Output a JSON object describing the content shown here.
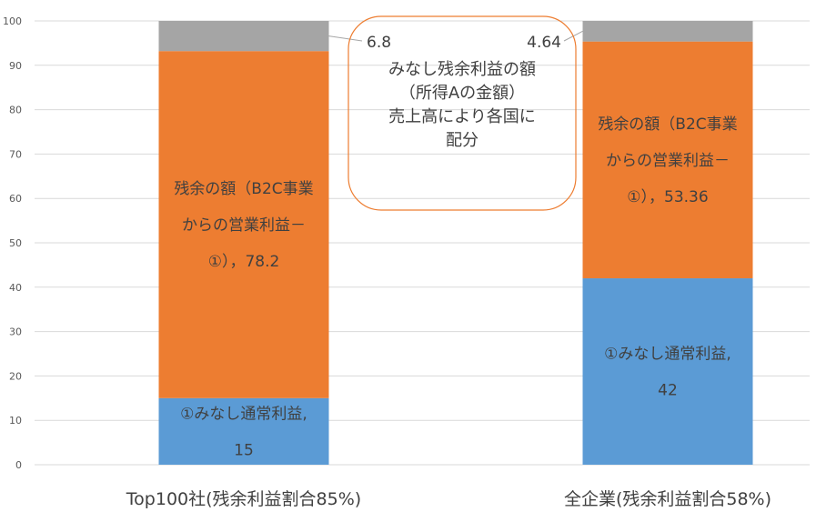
{
  "chart_data": {
    "type": "bar",
    "stacked": true,
    "categories": [
      "Top100社(残余利益割合85%)",
      "全企業(残余利益割合58%)"
    ],
    "ylim": [
      0,
      100
    ],
    "yticks": [
      0,
      10,
      20,
      30,
      40,
      50,
      60,
      70,
      80,
      90,
      100
    ],
    "grid": true,
    "legend": "none",
    "series": [
      {
        "values": [
          15,
          42
        ],
        "color": "#5b9bd5",
        "labels": [
          [
            "①みなし通常利益,",
            "15"
          ],
          [
            "①みなし通常利益,",
            "42"
          ]
        ]
      },
      {
        "values": [
          78.2,
          53.36
        ],
        "color": "#ed7d31",
        "labels": [
          [
            "残余の額（B2C事業",
            "からの営業利益－",
            "①），78.2"
          ],
          [
            "残余の額（B2C事業",
            "からの営業利益－",
            "①），53.36"
          ]
        ]
      },
      {
        "values": [
          6.8,
          4.64
        ],
        "color": "#a5a5a5",
        "labels": [
          [
            "6.8"
          ],
          [
            "4.64"
          ]
        ]
      }
    ],
    "annotation": {
      "lines": [
        "みなし残余利益の額",
        "（所得Aの金額）",
        "売上高により各国に",
        "配分"
      ],
      "border_color": "#ed7d31"
    }
  }
}
